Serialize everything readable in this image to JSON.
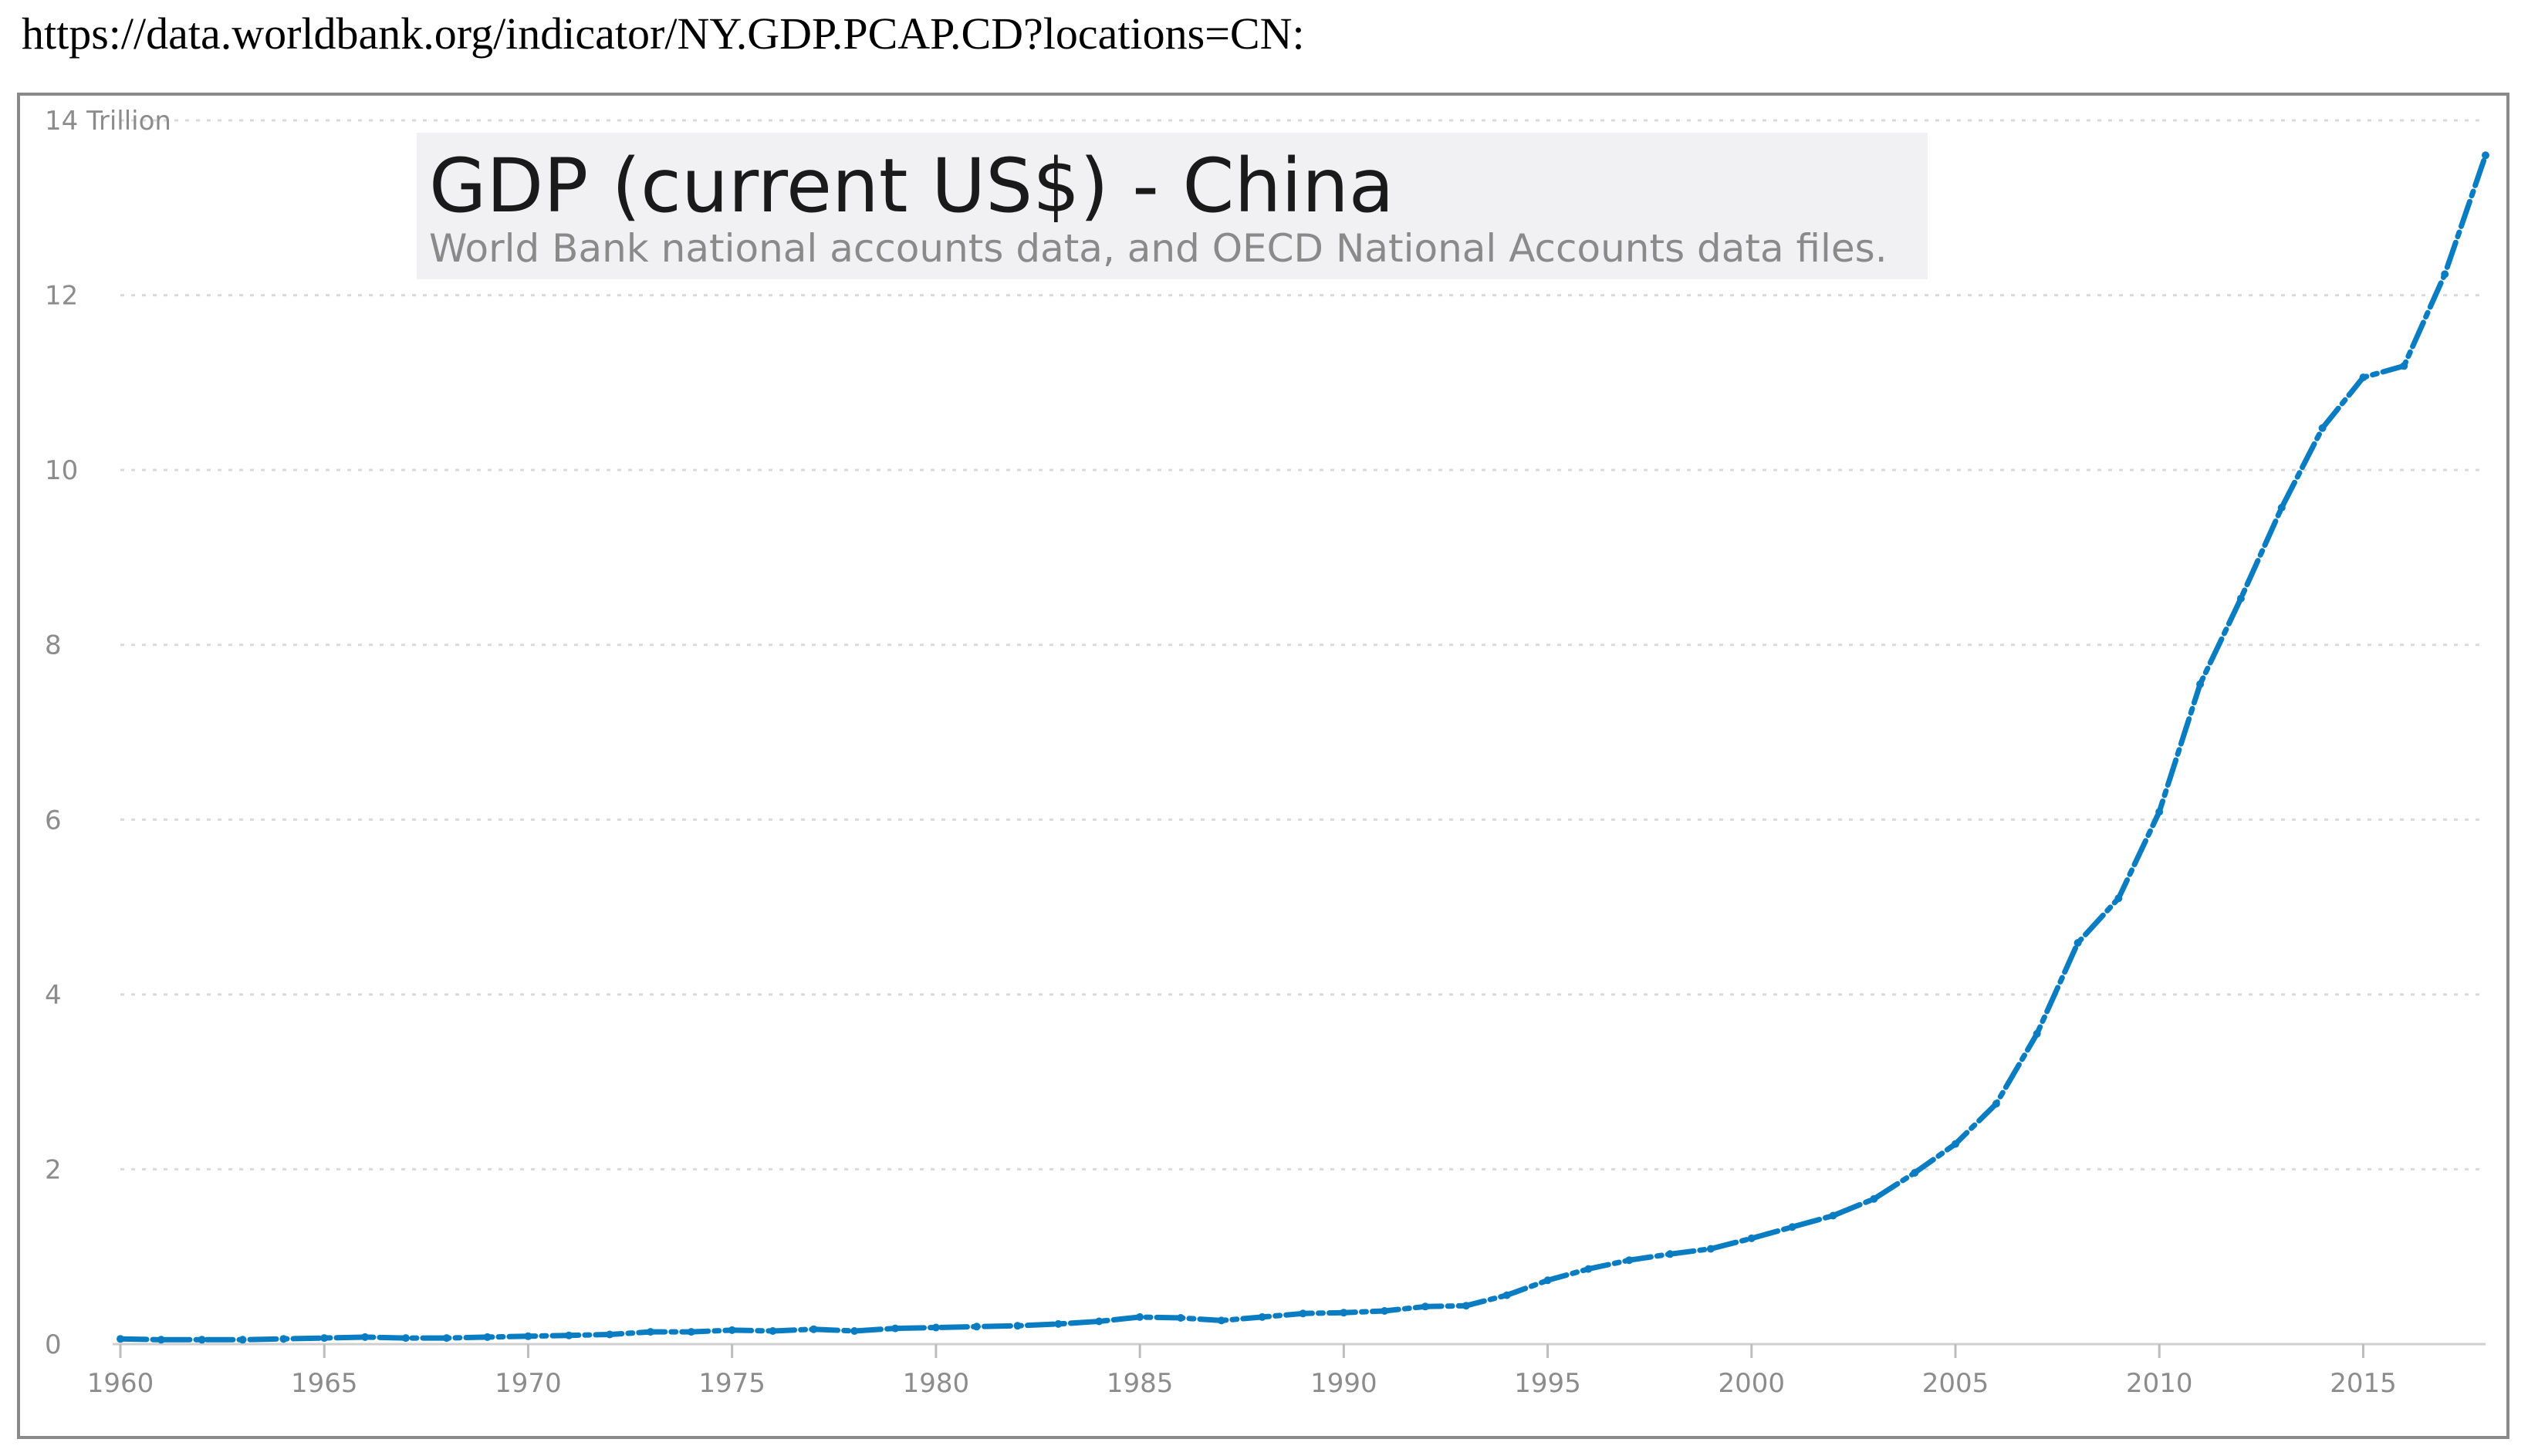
{
  "source_url": "https://data.worldbank.org/indicator/NY.GDP.PCAP.CD?locations=CN:",
  "chart_data": {
    "type": "line",
    "title": "GDP (current US$) - China",
    "subtitle": "World Bank national accounts data, and OECD National Accounts data files.",
    "y_unit_label": "Trillion",
    "xlabel": "",
    "ylabel": "",
    "xlim": [
      1960,
      2018
    ],
    "ylim": [
      0,
      14
    ],
    "y_ticks": [
      0,
      2,
      4,
      6,
      8,
      10,
      12,
      14
    ],
    "x_ticks": [
      1960,
      1965,
      1970,
      1975,
      1980,
      1985,
      1990,
      1995,
      2000,
      2005,
      2010,
      2015
    ],
    "grid": true,
    "line_color": "#0a7cc1",
    "series": [
      {
        "name": "China",
        "x": [
          1960,
          1961,
          1962,
          1963,
          1964,
          1965,
          1966,
          1967,
          1968,
          1969,
          1970,
          1971,
          1972,
          1973,
          1974,
          1975,
          1976,
          1977,
          1978,
          1979,
          1980,
          1981,
          1982,
          1983,
          1984,
          1985,
          1986,
          1987,
          1988,
          1989,
          1990,
          1991,
          1992,
          1993,
          1994,
          1995,
          1996,
          1997,
          1998,
          1999,
          2000,
          2001,
          2002,
          2003,
          2004,
          2005,
          2006,
          2007,
          2008,
          2009,
          2010,
          2011,
          2012,
          2013,
          2014,
          2015,
          2016,
          2017,
          2018
        ],
        "values": [
          0.06,
          0.05,
          0.05,
          0.05,
          0.06,
          0.07,
          0.08,
          0.07,
          0.07,
          0.08,
          0.09,
          0.1,
          0.11,
          0.14,
          0.14,
          0.16,
          0.15,
          0.17,
          0.15,
          0.18,
          0.19,
          0.2,
          0.21,
          0.23,
          0.26,
          0.31,
          0.3,
          0.27,
          0.31,
          0.35,
          0.36,
          0.38,
          0.43,
          0.44,
          0.56,
          0.73,
          0.86,
          0.96,
          1.03,
          1.09,
          1.21,
          1.34,
          1.47,
          1.66,
          1.96,
          2.29,
          2.75,
          3.55,
          4.59,
          5.1,
          6.09,
          7.55,
          8.53,
          9.57,
          10.48,
          11.06,
          11.19,
          12.24,
          13.6
        ]
      }
    ]
  }
}
